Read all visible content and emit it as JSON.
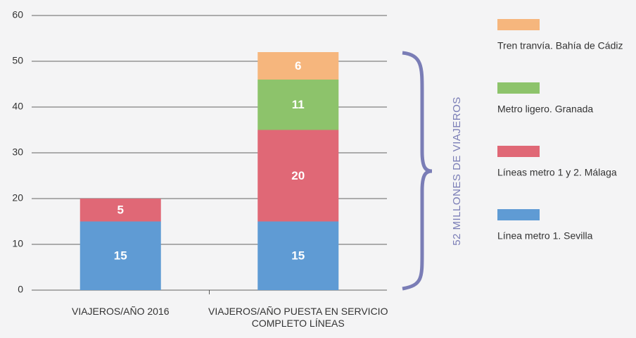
{
  "chart_data": {
    "type": "stacked_bar",
    "categories": [
      "VIAJEROS/AÑO 2016",
      "VIAJEROS/AÑO PUESTA EN SERVICIO COMPLETO LÍNEAS"
    ],
    "series": [
      {
        "name": "Línea metro 1. Sevilla",
        "color": "#5f9bd4",
        "values": [
          15,
          15
        ]
      },
      {
        "name": "Líneas metro 1 y 2. Málaga",
        "color": "#e06876",
        "values": [
          5,
          20
        ]
      },
      {
        "name": "Metro ligero. Granada",
        "color": "#8dc36b",
        "values": [
          null,
          11
        ]
      },
      {
        "name": "Tren tranvía. Bahía de Cádiz",
        "color": "#f6b67d",
        "values": [
          null,
          6
        ]
      }
    ],
    "ylim": [
      0,
      60
    ],
    "yticks": [
      0,
      10,
      20,
      30,
      40,
      50,
      60
    ],
    "grid": true,
    "annotation": "52 MILLONES DE VIAJEROS",
    "annotation_color": "#7a7db6"
  }
}
